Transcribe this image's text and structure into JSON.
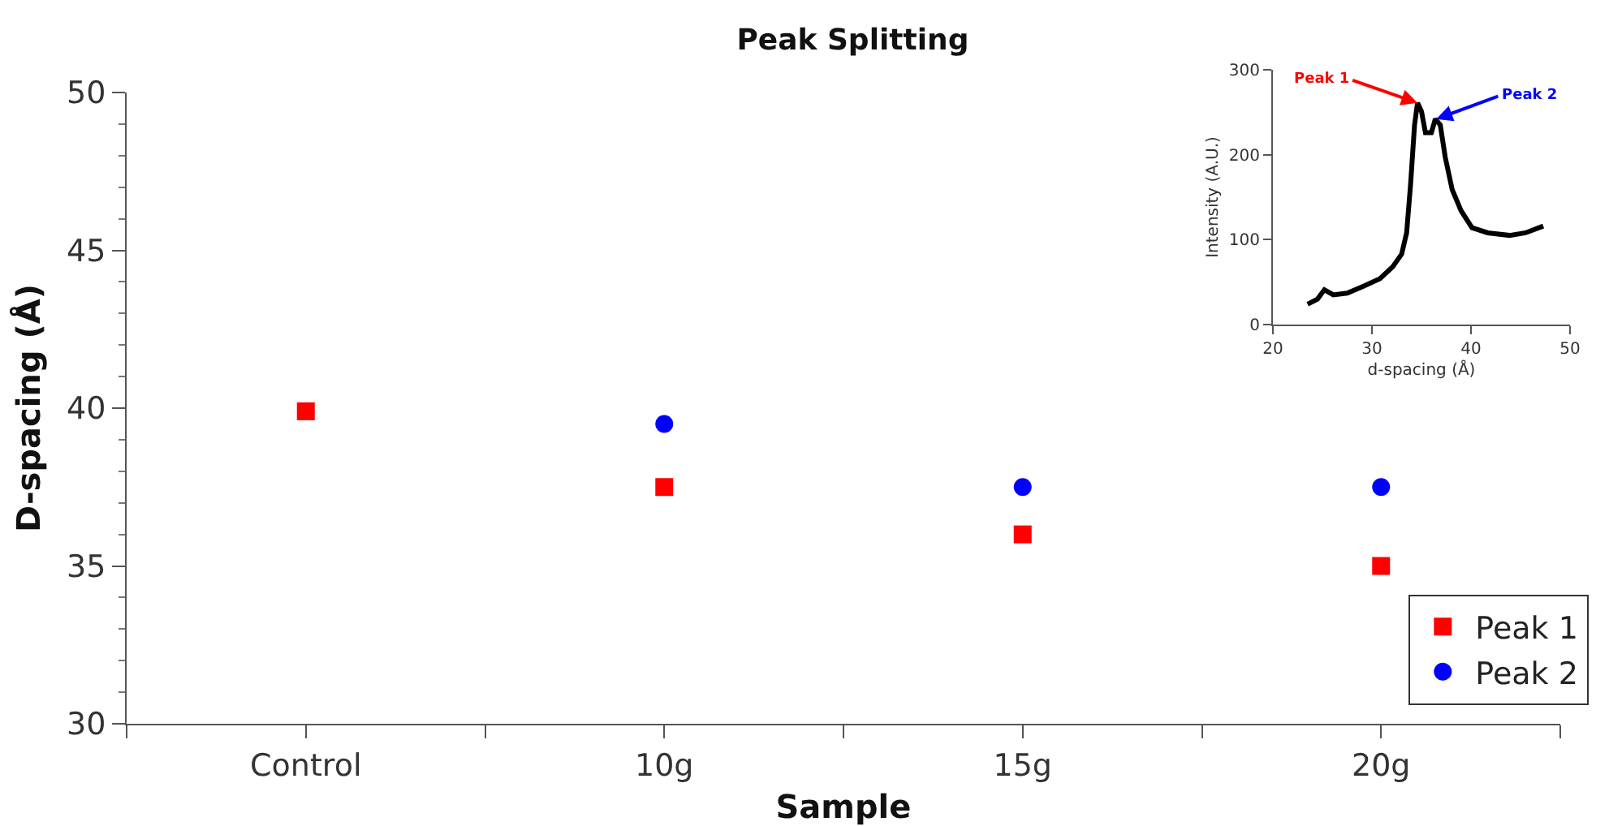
{
  "chart_data": [
    {
      "type": "scatter",
      "title": "Peak Splitting",
      "xlabel": "Sample",
      "ylabel": "D-spacing (Å)",
      "categories": [
        "Control",
        "10g",
        "15g",
        "20g"
      ],
      "series": [
        {
          "name": "Peak 1",
          "color": "#ff0000",
          "marker": "square",
          "values": [
            39.9,
            37.5,
            36,
            35
          ]
        },
        {
          "name": "Peak 2",
          "color": "#0000ff",
          "marker": "circle",
          "values": [
            null,
            39.5,
            37.5,
            37.5
          ]
        }
      ],
      "ylim": [
        30,
        50
      ],
      "yticks": [
        30,
        35,
        40,
        45,
        50
      ],
      "grid": false,
      "legend": "bottom right"
    },
    {
      "type": "line",
      "xlabel": "d-spacing (Å)",
      "ylabel": "Intensity (A.U.)",
      "series": [
        {
          "color": "#000000",
          "x": [
            23.5,
            24.5,
            25.2,
            26.1,
            27.5,
            29.1,
            30.8,
            32.1,
            33.0,
            33.5,
            33.9,
            34.3,
            34.6,
            35.0,
            35.4,
            36.0,
            36.4,
            36.9,
            37.4,
            38.1,
            39.0,
            40.1,
            41.7,
            43.9,
            45.5,
            47.3
          ],
          "values": [
            24,
            30,
            41,
            35,
            37,
            45,
            54,
            68,
            83,
            108,
            165,
            235,
            261,
            251,
            226,
            226,
            242,
            235,
            197,
            159,
            134,
            114,
            108,
            105,
            108,
            116
          ]
        }
      ],
      "xlim": [
        20,
        50
      ],
      "xticks": [
        20,
        30,
        40,
        50
      ],
      "ylim": [
        0,
        300
      ],
      "yticks": [
        0,
        100,
        200,
        300
      ],
      "grid": false,
      "legend": false,
      "annotations": [
        {
          "text": "Peak 1",
          "x": 34.6,
          "y": 261
        },
        {
          "text": "Peak 2",
          "x": 36.5,
          "y": 242
        }
      ]
    }
  ]
}
